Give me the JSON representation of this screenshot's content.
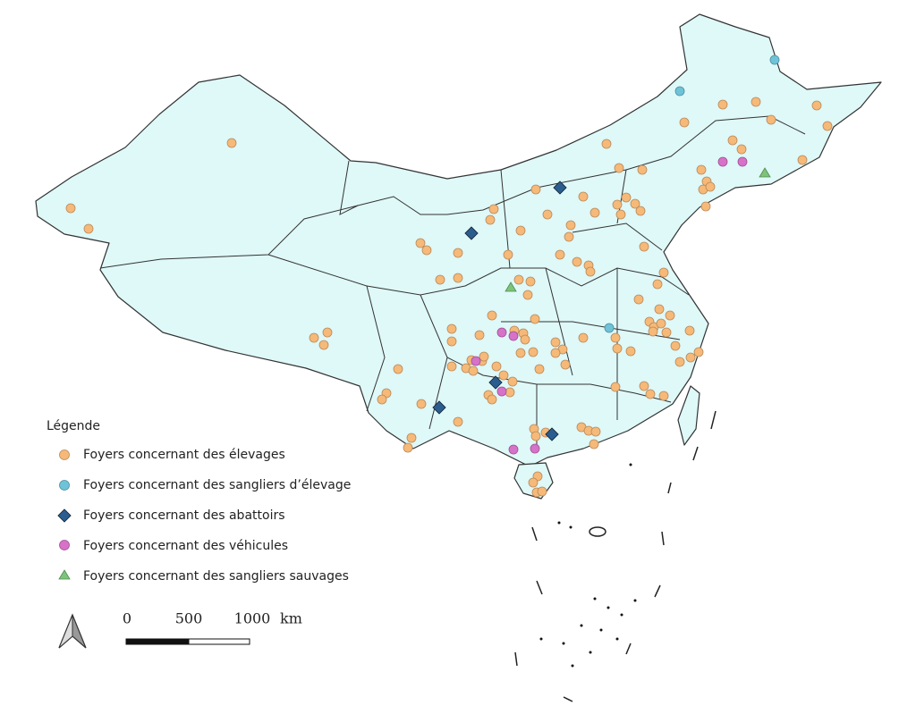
{
  "legend": {
    "title": "Légende",
    "items": [
      "Foyers concernant des élevages",
      "Foyers concernant des sangliers d’élevage",
      "Foyers concernant des abattoirs",
      "Foyers concernant des véhicules",
      "Foyers concernant des sangliers sauvages"
    ]
  },
  "scale": {
    "labels": [
      "0",
      "500",
      "1000"
    ],
    "unit": "km"
  }
}
